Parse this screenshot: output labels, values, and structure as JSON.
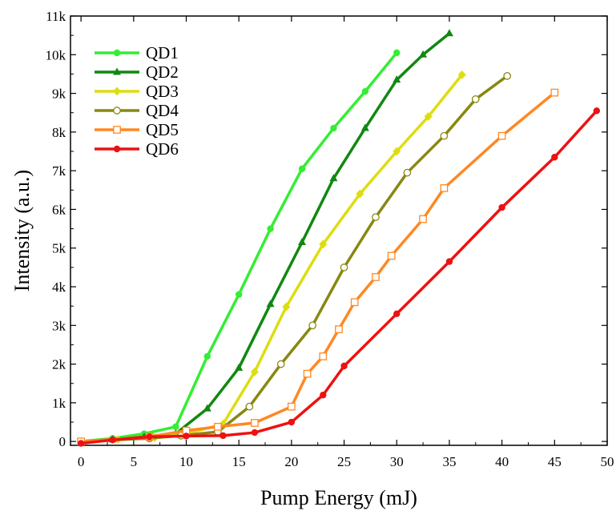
{
  "chart_data": {
    "type": "line",
    "xlabel": "Pump Energy (mJ)",
    "ylabel": "Intensity (a.u.)",
    "xlim": [
      -1,
      50
    ],
    "ylim": [
      -100,
      11000
    ],
    "x_ticks": [
      0,
      5,
      10,
      15,
      20,
      25,
      30,
      35,
      40,
      45,
      50
    ],
    "y_ticks": [
      {
        "value": 0,
        "label": "0"
      },
      {
        "value": 1000,
        "label": "1k"
      },
      {
        "value": 2000,
        "label": "2k"
      },
      {
        "value": 3000,
        "label": "3k"
      },
      {
        "value": 4000,
        "label": "4k"
      },
      {
        "value": 5000,
        "label": "5k"
      },
      {
        "value": 6000,
        "label": "6k"
      },
      {
        "value": 7000,
        "label": "7k"
      },
      {
        "value": 8000,
        "label": "8k"
      },
      {
        "value": 9000,
        "label": "9k"
      },
      {
        "value": 10000,
        "label": "10k"
      },
      {
        "value": 11000,
        "label": "11k"
      }
    ],
    "grid": false,
    "legend_position": "top-left",
    "series": [
      {
        "name": "QD1",
        "color": "#33ee33",
        "marker": "circle",
        "points": [
          [
            0,
            0
          ],
          [
            3,
            80
          ],
          [
            6,
            200
          ],
          [
            9,
            380
          ],
          [
            12,
            2200
          ],
          [
            15,
            3800
          ],
          [
            18,
            5500
          ],
          [
            21,
            7050
          ],
          [
            24,
            8100
          ],
          [
            27,
            9050
          ],
          [
            30,
            10050
          ]
        ]
      },
      {
        "name": "QD2",
        "color": "#118811",
        "marker": "triangle",
        "points": [
          [
            0,
            0
          ],
          [
            3,
            50
          ],
          [
            6,
            120
          ],
          [
            9,
            200
          ],
          [
            12,
            850
          ],
          [
            15,
            1900
          ],
          [
            18,
            3550
          ],
          [
            21,
            5150
          ],
          [
            24,
            6800
          ],
          [
            27,
            8100
          ],
          [
            30,
            9350
          ],
          [
            32.5,
            10000
          ],
          [
            35,
            10550
          ]
        ]
      },
      {
        "name": "QD3",
        "color": "#dddd11",
        "marker": "diamond",
        "points": [
          [
            0,
            0
          ],
          [
            3.5,
            50
          ],
          [
            7,
            100
          ],
          [
            10,
            200
          ],
          [
            13.5,
            450
          ],
          [
            16.5,
            1800
          ],
          [
            19.5,
            3480
          ],
          [
            23,
            5100
          ],
          [
            26.5,
            6400
          ],
          [
            30,
            7500
          ],
          [
            33,
            8400
          ],
          [
            36.2,
            9480
          ]
        ]
      },
      {
        "name": "QD4",
        "color": "#888811",
        "marker": "open-circle",
        "points": [
          [
            0,
            0
          ],
          [
            6.5,
            80
          ],
          [
            9.5,
            150
          ],
          [
            13,
            250
          ],
          [
            16,
            900
          ],
          [
            19,
            2000
          ],
          [
            22,
            3000
          ],
          [
            25,
            4500
          ],
          [
            28,
            5800
          ],
          [
            31,
            6950
          ],
          [
            34.5,
            7900
          ],
          [
            37.5,
            8850
          ],
          [
            40.5,
            9450
          ]
        ]
      },
      {
        "name": "QD5",
        "color": "#ff8822",
        "marker": "open-square",
        "points": [
          [
            0,
            0
          ],
          [
            6.5,
            120
          ],
          [
            10,
            280
          ],
          [
            13,
            380
          ],
          [
            16.5,
            480
          ],
          [
            20,
            900
          ],
          [
            21.5,
            1750
          ],
          [
            23,
            2200
          ],
          [
            24.5,
            2900
          ],
          [
            26,
            3600
          ],
          [
            28,
            4250
          ],
          [
            29.5,
            4800
          ],
          [
            32.5,
            5750
          ],
          [
            34.5,
            6550
          ],
          [
            40,
            7900
          ],
          [
            45,
            9020
          ]
        ]
      },
      {
        "name": "QD6",
        "color": "#ee1111",
        "marker": "circle",
        "points": [
          [
            0,
            -50
          ],
          [
            3,
            40
          ],
          [
            6.5,
            120
          ],
          [
            10,
            140
          ],
          [
            13.5,
            150
          ],
          [
            16.5,
            230
          ],
          [
            20,
            500
          ],
          [
            23,
            1200
          ],
          [
            25,
            1950
          ],
          [
            30,
            3300
          ],
          [
            35,
            4650
          ],
          [
            40,
            6050
          ],
          [
            45,
            7350
          ],
          [
            49,
            8550
          ]
        ]
      }
    ]
  }
}
